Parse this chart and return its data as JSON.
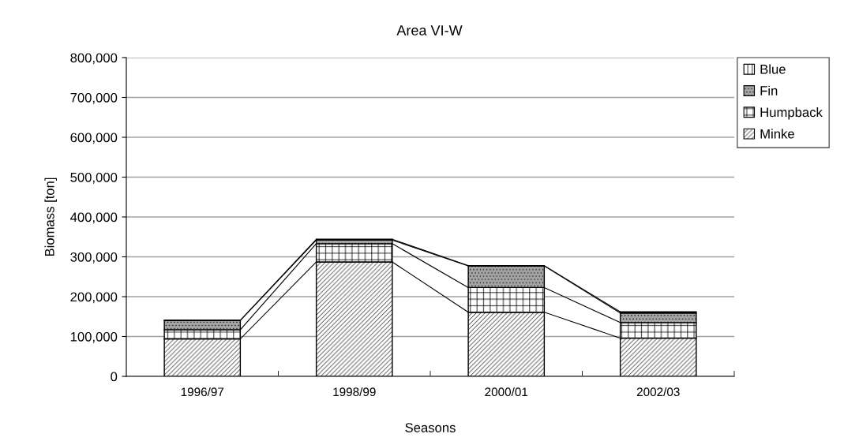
{
  "chart_data": {
    "type": "bar",
    "title": "Area VI-W",
    "xlabel": "Seasons",
    "ylabel": "Biomass [ton]",
    "categories": [
      "1996/97",
      "1998/99",
      "2000/01",
      "2002/03"
    ],
    "stacked": true,
    "series": [
      {
        "name": "Minke",
        "color": "#000000",
        "values": [
          94000,
          287000,
          161000,
          96000
        ]
      },
      {
        "name": "Humpback",
        "color": "#000000",
        "values": [
          23000,
          46000,
          62000,
          39000
        ]
      },
      {
        "name": "Fin",
        "color": "#000000",
        "values": [
          23000,
          9000,
          54000,
          24000
        ]
      },
      {
        "name": "Blue",
        "color": "#000000",
        "values": [
          1000,
          2000,
          1000,
          3000
        ]
      }
    ],
    "ylim": [
      0,
      800000
    ],
    "yticks": [
      0,
      {
        "value": 100000,
        "label": "100,000"
      },
      {
        "value": 200000,
        "label": "200,000"
      },
      {
        "value": 300000,
        "label": "300,000"
      },
      {
        "value": 400000,
        "label": "400,000"
      },
      {
        "value": 500000,
        "label": "500,000"
      },
      {
        "value": 600000,
        "label": "600,000"
      },
      {
        "value": 700000,
        "label": "700,000"
      },
      {
        "value": 800000,
        "label": "800,000"
      }
    ],
    "grid": "y",
    "legend": "right"
  }
}
